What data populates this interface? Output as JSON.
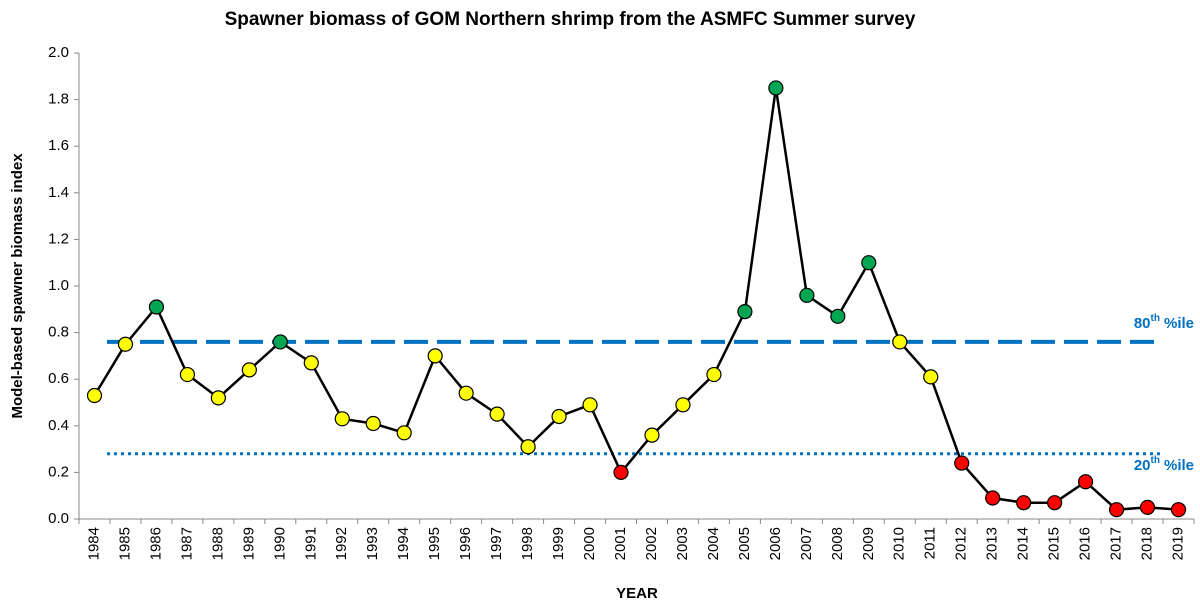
{
  "chart_data": {
    "type": "line",
    "title": "Spawner biomass of GOM Northern shrimp from the ASMFC Summer survey",
    "x_label": "YEAR",
    "y_label": "Model-based spawner biomass index",
    "categories": [
      "1984",
      "1985",
      "1986",
      "1987",
      "1988",
      "1989",
      "1990",
      "1991",
      "1992",
      "1993",
      "1994",
      "1995",
      "1996",
      "1997",
      "1998",
      "1999",
      "2000",
      "2001",
      "2002",
      "2003",
      "2004",
      "2005",
      "2006",
      "2007",
      "2008",
      "2009",
      "2010",
      "2011",
      "2012",
      "2013",
      "2014",
      "2015",
      "2016",
      "2017",
      "2018",
      "2019"
    ],
    "series": [
      {
        "name": "Spawner biomass",
        "color": "#000000",
        "values": [
          0.53,
          0.75,
          0.91,
          0.62,
          0.52,
          0.64,
          0.76,
          0.67,
          0.43,
          0.41,
          0.37,
          0.7,
          0.54,
          0.45,
          0.31,
          0.44,
          0.49,
          0.2,
          0.36,
          0.49,
          0.62,
          0.89,
          1.85,
          0.96,
          0.87,
          1.1,
          0.76,
          0.61,
          0.24,
          0.09,
          0.07,
          0.07,
          0.16,
          0.04,
          0.05,
          0.04
        ],
        "point_colors": [
          "#ffff00",
          "#ffff00",
          "#00a651",
          "#ffff00",
          "#ffff00",
          "#ffff00",
          "#00a651",
          "#ffff00",
          "#ffff00",
          "#ffff00",
          "#ffff00",
          "#ffff00",
          "#ffff00",
          "#ffff00",
          "#ffff00",
          "#ffff00",
          "#ffff00",
          "#ff0000",
          "#ffff00",
          "#ffff00",
          "#ffff00",
          "#00a651",
          "#00a651",
          "#00a651",
          "#00a651",
          "#00a651",
          "#ffff00",
          "#ffff00",
          "#ff0000",
          "#ff0000",
          "#ff0000",
          "#ff0000",
          "#ff0000",
          "#ff0000",
          "#ff0000",
          "#ff0000"
        ]
      }
    ],
    "reference_lines": [
      {
        "label": "80",
        "sup": "th",
        "suffix": "%ile",
        "value": 0.76,
        "style": "dashed",
        "color": "#0070c0"
      },
      {
        "label": "20",
        "sup": "th",
        "suffix": "%ile",
        "value": 0.28,
        "style": "dotted",
        "color": "#0070c0"
      }
    ],
    "ylim": [
      0,
      2
    ],
    "yticks": [
      {
        "value": 0,
        "label": "0.0"
      },
      {
        "value": 0.2,
        "label": "0.2"
      },
      {
        "value": 0.4,
        "label": "0.4"
      },
      {
        "value": 0.6,
        "label": "0.6"
      },
      {
        "value": 0.8,
        "label": "0.8"
      },
      {
        "value": 1,
        "label": "1.0"
      },
      {
        "value": 1.2,
        "label": "1.2"
      },
      {
        "value": 1.4,
        "label": "1.4"
      },
      {
        "value": 1.6,
        "label": "1.6"
      },
      {
        "value": 1.8,
        "label": "1.8"
      },
      {
        "value": 2,
        "label": "2.0"
      }
    ],
    "grid": false
  }
}
